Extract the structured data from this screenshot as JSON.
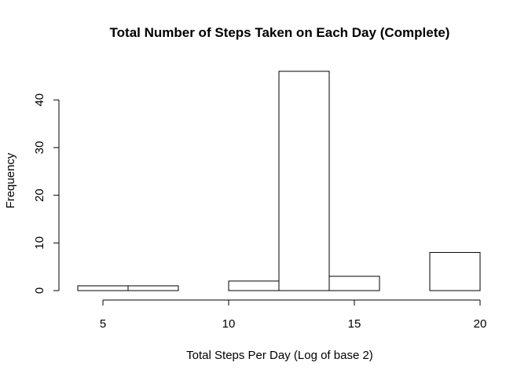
{
  "chart_data": {
    "type": "bar",
    "title": "Total Number of Steps Taken on Each Day (Complete)",
    "xlabel": "Total Steps Per Day (Log of base 2)",
    "ylabel": "Frequency",
    "bins": [
      {
        "x0": 4,
        "x1": 6,
        "count": 1
      },
      {
        "x0": 6,
        "x1": 8,
        "count": 1
      },
      {
        "x0": 8,
        "x1": 10,
        "count": 0
      },
      {
        "x0": 10,
        "x1": 12,
        "count": 2
      },
      {
        "x0": 12,
        "x1": 14,
        "count": 46
      },
      {
        "x0": 14,
        "x1": 16,
        "count": 3
      },
      {
        "x0": 16,
        "x1": 18,
        "count": 0
      },
      {
        "x0": 18,
        "x1": 20,
        "count": 8
      }
    ],
    "x_ticks": [
      5,
      10,
      15,
      20
    ],
    "y_ticks": [
      0,
      10,
      20,
      30,
      40
    ],
    "xlim": [
      4,
      20
    ],
    "ylim": [
      0,
      46
    ],
    "grid": false
  }
}
